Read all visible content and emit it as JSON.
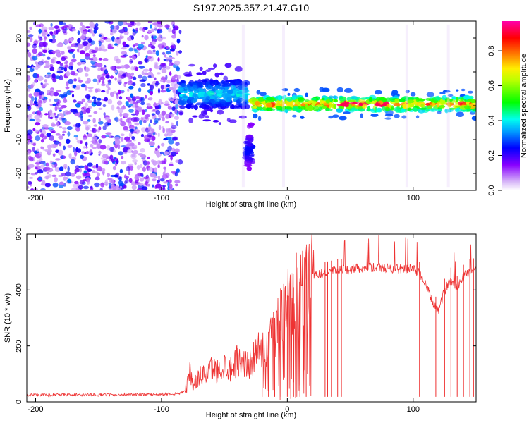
{
  "chart_data": [
    {
      "type": "heatmap",
      "title": "S197.2025.357.21.47.G10",
      "xlabel": "Height of straight line (km)",
      "ylabel": "Frequency (Hz)",
      "xlim": [
        -207,
        150
      ],
      "ylim": [
        -25,
        25
      ],
      "xticks": [
        -200,
        -100,
        0,
        100
      ],
      "yticks": [
        -20,
        -10,
        0,
        10,
        20
      ],
      "colorbar": {
        "label": "Normalized spectral amplitude",
        "range": [
          0.0,
          0.97
        ],
        "ticks": [
          0.0,
          0.2,
          0.4,
          0.6,
          0.8
        ]
      },
      "features": [
        {
          "region": "noise",
          "x_range": [
            -207,
            -85
          ],
          "f_range": [
            -25,
            25
          ],
          "amplitude_range": [
            0.0,
            0.3
          ]
        },
        {
          "region": "early-signal",
          "x_range": [
            -85,
            -32
          ],
          "f_center": 3.5,
          "f_width": 4,
          "amplitude_range": [
            0.2,
            0.45
          ]
        },
        {
          "region": "low-frequency-blob",
          "x_range": [
            -33,
            -28
          ],
          "f_center": -13,
          "f_width": 4,
          "amplitude_range": [
            0.15,
            0.3
          ]
        },
        {
          "region": "main-signal",
          "x_range": [
            -28,
            150
          ],
          "f_center": 0.5,
          "f_width": 2,
          "amplitude_range": [
            0.3,
            0.95
          ]
        }
      ]
    },
    {
      "type": "line",
      "xlabel": "Height of straight line (km)",
      "ylabel": "SNR (10 * v/v)",
      "xlim": [
        -207,
        150
      ],
      "ylim": [
        0,
        600
      ],
      "xticks": [
        -200,
        -100,
        0,
        100
      ],
      "yticks": [
        0,
        200,
        400,
        600
      ],
      "series": [
        {
          "name": "SNR",
          "color": "#ee3333",
          "x": [
            -207,
            -190,
            -170,
            -150,
            -130,
            -110,
            -95,
            -85,
            -80,
            -78,
            -75,
            -70,
            -65,
            -60,
            -55,
            -50,
            -45,
            -40,
            -35,
            -30,
            -25,
            -20,
            -15,
            -10,
            -5,
            0,
            5,
            10,
            15,
            20,
            25,
            30,
            35,
            40,
            50,
            60,
            70,
            80,
            90,
            100,
            105,
            110,
            115,
            120,
            125,
            130,
            135,
            140,
            145,
            150
          ],
          "values": [
            25,
            25,
            25,
            25,
            26,
            27,
            28,
            30,
            50,
            120,
            60,
            90,
            100,
            120,
            110,
            130,
            120,
            150,
            140,
            130,
            170,
            190,
            210,
            260,
            300,
            340,
            370,
            400,
            420,
            445,
            455,
            460,
            465,
            470,
            475,
            480,
            480,
            478,
            475,
            475,
            460,
            420,
            360,
            320,
            400,
            440,
            410,
            450,
            470,
            475
          ],
          "dropouts_x": [
            -20,
            -15,
            -10,
            -5,
            0,
            5,
            10,
            15,
            30,
            32,
            35,
            40,
            43,
            105,
            115,
            118,
            125,
            130,
            135,
            140,
            145,
            148
          ]
        }
      ]
    }
  ]
}
